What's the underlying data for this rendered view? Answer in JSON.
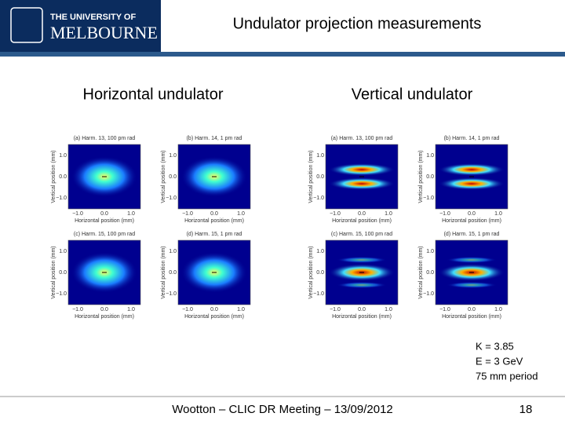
{
  "header": {
    "logo_line1": "THE UNIVERSITY OF",
    "logo_line2": "MELBOURNE",
    "title": "Undulator projection measurements"
  },
  "panels": [
    {
      "heading": "Horizontal undulator",
      "plots": [
        {
          "title": "(a) Harm. 13, 100 pm rad",
          "xlabel": "Horizontal position (mm)",
          "ylabel": "Vertical position (mm)"
        },
        {
          "title": "(b) Harm. 14, 1 pm rad",
          "xlabel": "Horizontal position (mm)",
          "ylabel": "Vertical position (mm)"
        },
        {
          "title": "(c) Harm. 15, 100 pm rad",
          "xlabel": "Horizontal position (mm)",
          "ylabel": "Vertical position (mm)"
        },
        {
          "title": "(d) Harm. 15, 1 pm rad",
          "xlabel": "Horizontal position (mm)",
          "ylabel": "Vertical position (mm)"
        }
      ]
    },
    {
      "heading": "Vertical undulator",
      "plots": [
        {
          "title": "(a) Harm. 13, 100 pm rad",
          "xlabel": "Horizontal position (mm)",
          "ylabel": "Vertical position (mm)"
        },
        {
          "title": "(b) Harm. 14, 1 pm rad",
          "xlabel": "Horizontal position (mm)",
          "ylabel": "Vertical position (mm)"
        },
        {
          "title": "(c) Harm. 15, 100 pm rad",
          "xlabel": "Horizontal position (mm)",
          "ylabel": "Vertical position (mm)"
        },
        {
          "title": "(d) Harm. 15, 1 pm rad",
          "xlabel": "Horizontal position (mm)",
          "ylabel": "Vertical position (mm)"
        }
      ]
    }
  ],
  "plot_ticks": {
    "x": [
      "−1.0",
      "0.0",
      "1.0"
    ],
    "y": [
      "1.0",
      "0.0",
      "−1.0"
    ]
  },
  "parameters": [
    "K = 3.85",
    "E = 3 GeV",
    "75 mm period"
  ],
  "footer": {
    "text": "Wootton – CLIC DR Meeting – 13/09/2012",
    "page": "18"
  }
}
